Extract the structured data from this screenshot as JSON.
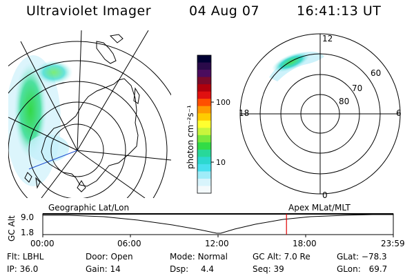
{
  "header": {
    "instrument": "Ultraviolet Imager",
    "date": "04 Aug 07",
    "time": "16:41:13 UT"
  },
  "colorbar": {
    "label": "photon cm⁻²s⁻¹",
    "ticks": [
      "100",
      "10"
    ],
    "colors": [
      "#000033",
      "#2a0a4a",
      "#4b0c5e",
      "#7a0a2a",
      "#b0000c",
      "#e01010",
      "#ff5000",
      "#ff9a00",
      "#ffcc00",
      "#ffff30",
      "#c8f53c",
      "#78e83c",
      "#32dc46",
      "#28d89a",
      "#2cd8d0",
      "#48e0ee",
      "#a0ecf8",
      "#d8f4fc",
      "#f4fafc"
    ]
  },
  "polar_map": {
    "labels": {
      "top": "12",
      "left": "18",
      "right": "6",
      "bottom": "0",
      "ring60": "60",
      "ring70": "70",
      "ring80": "80"
    }
  },
  "timeline": {
    "left_label": "Geographic Lat/Lon",
    "right_label": "Apex MLat/MLT",
    "y_axis_label": "GC Alt",
    "y_ticks": [
      "9.0",
      "1.8"
    ],
    "x_ticks": [
      "00:00",
      "06:00",
      "12:00",
      "18:00",
      "23:59"
    ],
    "current_time_fraction": 0.6953
  },
  "status": {
    "flt_label": "Flt:",
    "flt_value": "LBHL",
    "ip_label": "IP:",
    "ip_value": "36.0",
    "door_label": "Door:",
    "door_value": "Open",
    "gain_label": "Gain:",
    "gain_value": "14",
    "mode_label": "Mode:",
    "mode_value": "Normal",
    "dsp_label": "Dsp:",
    "dsp_value": "4.4",
    "gcalt_label": "GC Alt:",
    "gcalt_value": "7.0 Re",
    "seq_label": "Seq:",
    "seq_value": "39",
    "glat_label": "GLat:",
    "glat_value": "−78.3",
    "glon_label": "GLon:",
    "glon_value": "69.7"
  }
}
